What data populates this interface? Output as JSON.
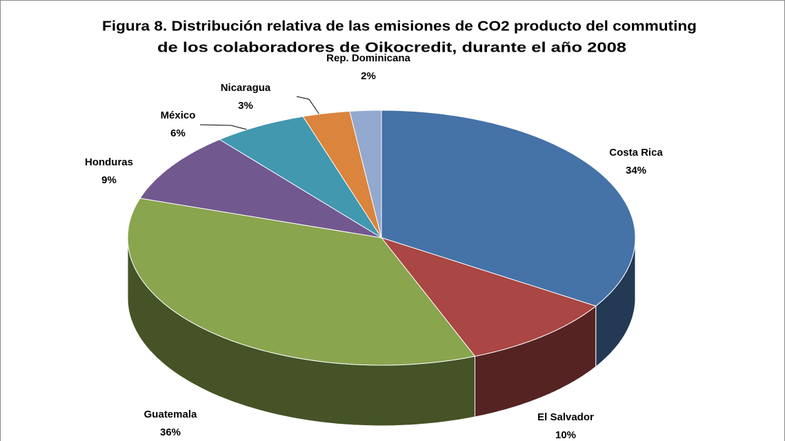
{
  "chart_data": {
    "type": "pie",
    "title": [
      "Figura 8. Distribución relativa de las emisiones de CO2 producto del commuting",
      "de los colaboradores de Oikocredit, durante el año 2008"
    ],
    "categories": [
      "Costa Rica",
      "El Salvador",
      "Guatemala",
      "Honduras",
      "México",
      "Nicaragua",
      "Rep. Dominicana"
    ],
    "values": [
      34,
      10,
      36,
      9,
      6,
      3,
      2
    ],
    "value_labels": [
      "34%",
      "10%",
      "36%",
      "9%",
      "6%",
      "3%",
      "2%"
    ],
    "colors": [
      "#4572a7",
      "#aa4643",
      "#89a54e",
      "#71588f",
      "#4198af",
      "#db843d",
      "#93a9cf"
    ]
  }
}
